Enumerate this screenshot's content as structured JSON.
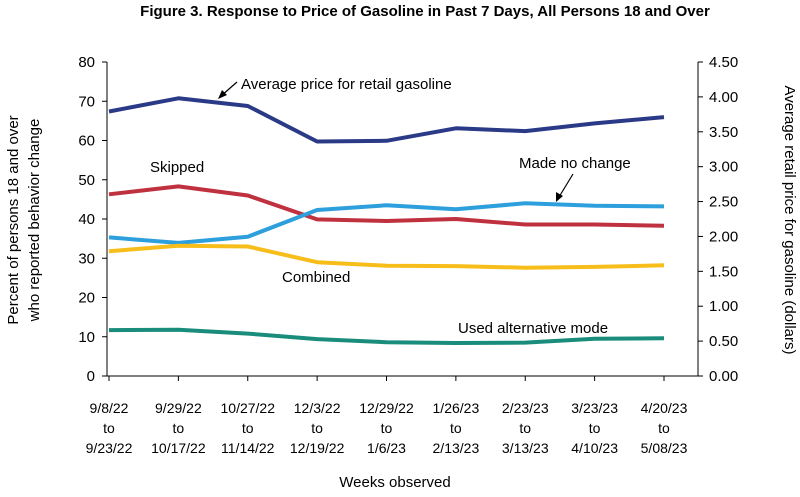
{
  "chart_data": {
    "type": "line",
    "title": "Figure 3. Response to Price of Gasoline in Past 7 Days, All Persons 18 and Over",
    "xlabel": "Weeks observed",
    "ylabel_lines": [
      "Percent of persons 18 and over",
      "who reported behavior change"
    ],
    "y2label": "Average retail price for gasoline (dollars)",
    "ylim": [
      0,
      80
    ],
    "y2lim": [
      0,
      4.5
    ],
    "yticks": [
      "0",
      "10",
      "20",
      "30",
      "40",
      "50",
      "60",
      "70",
      "80"
    ],
    "y2ticks": [
      "0.00",
      "0.50",
      "1.00",
      "1.50",
      "2.00",
      "2.50",
      "3.00",
      "3.50",
      "4.00",
      "4.50"
    ],
    "grid": false,
    "categories": [
      [
        "9/8/22",
        "to",
        "9/23/22"
      ],
      [
        "9/29/22",
        "to",
        "10/17/22"
      ],
      [
        "10/27/22",
        "to",
        "11/14/22"
      ],
      [
        "12/3/22",
        "to",
        "12/19/22"
      ],
      [
        "12/29/22",
        "to",
        "1/6/23"
      ],
      [
        "1/26/23",
        "to",
        "2/13/23"
      ],
      [
        "2/23/23",
        "to",
        "3/13/23"
      ],
      [
        "3/23/23",
        "to",
        "4/10/23"
      ],
      [
        "4/20/23",
        "to",
        "5/08/23"
      ]
    ],
    "series": [
      {
        "name": "Average price for retail gasoline",
        "axis": "right",
        "color": "#2b3a87",
        "values": [
          3.79,
          3.98,
          3.87,
          3.36,
          3.37,
          3.55,
          3.51,
          3.62,
          3.71
        ]
      },
      {
        "name": "Skipped",
        "axis": "left",
        "color": "#c0313f",
        "values": [
          46.3,
          48.3,
          46.0,
          39.9,
          39.5,
          40.0,
          38.6,
          38.6,
          38.3
        ]
      },
      {
        "name": "Made no change",
        "axis": "left",
        "color": "#2d9fdc",
        "values": [
          35.3,
          33.9,
          35.5,
          42.3,
          43.5,
          42.5,
          44.0,
          43.4,
          43.2
        ]
      },
      {
        "name": "Combined",
        "axis": "left",
        "color": "#f6bd1b",
        "values": [
          31.8,
          33.2,
          33.0,
          29.0,
          28.1,
          28.0,
          27.6,
          27.8,
          28.2
        ]
      },
      {
        "name": "Used alternative mode",
        "axis": "left",
        "color": "#1a8c7c",
        "values": [
          11.7,
          11.8,
          10.8,
          9.4,
          8.6,
          8.4,
          8.5,
          9.5,
          9.6
        ]
      }
    ]
  }
}
